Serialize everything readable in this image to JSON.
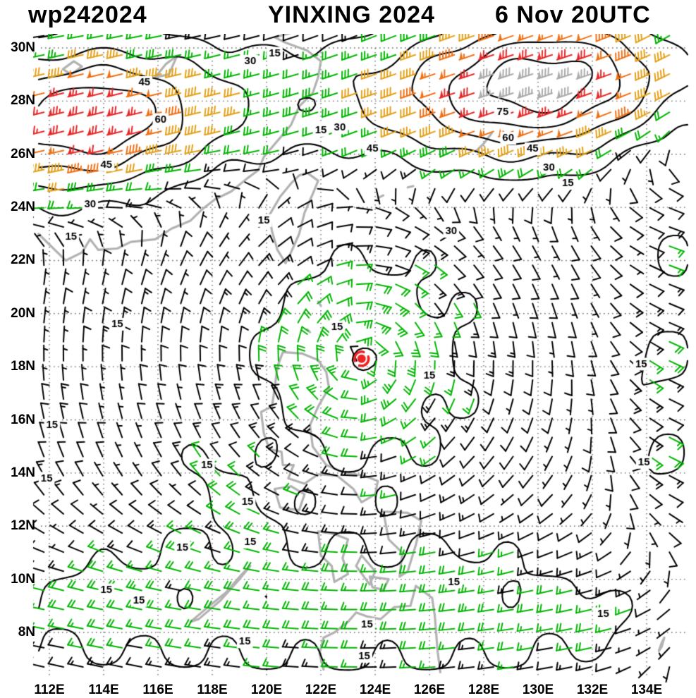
{
  "header": {
    "storm_id": "wp242024",
    "storm_name": "YINXING 2024",
    "valid_time": "6 Nov 20UTC"
  },
  "axes": {
    "x_ticks": [
      {
        "label": "112E",
        "lon": 112
      },
      {
        "label": "114E",
        "lon": 114
      },
      {
        "label": "116E",
        "lon": 116
      },
      {
        "label": "118E",
        "lon": 118
      },
      {
        "label": "120E",
        "lon": 120
      },
      {
        "label": "122E",
        "lon": 122
      },
      {
        "label": "124E",
        "lon": 124
      },
      {
        "label": "126E",
        "lon": 126
      },
      {
        "label": "128E",
        "lon": 128
      },
      {
        "label": "130E",
        "lon": 130
      },
      {
        "label": "132E",
        "lon": 132
      },
      {
        "label": "134E",
        "lon": 134
      }
    ],
    "y_ticks": [
      {
        "label": "30N",
        "lat": 30
      },
      {
        "label": "28N",
        "lat": 28
      },
      {
        "label": "26N",
        "lat": 26
      },
      {
        "label": "24N",
        "lat": 24
      },
      {
        "label": "22N",
        "lat": 22
      },
      {
        "label": "20N",
        "lat": 20
      },
      {
        "label": "18N",
        "lat": 18
      },
      {
        "label": "16N",
        "lat": 16
      },
      {
        "label": "14N",
        "lat": 14
      },
      {
        "label": "12N",
        "lat": 12
      },
      {
        "label": "10N",
        "lat": 10
      },
      {
        "label": "8N",
        "lat": 8
      }
    ],
    "lon_range": [
      111.6,
      135.5
    ],
    "lat_range": [
      6.3,
      30.6
    ],
    "grid": "dotted",
    "grid_color": "#666666"
  },
  "chart_data": {
    "type": "wind-barb-map",
    "units": "kt",
    "isotach_levels": [
      15,
      30,
      45,
      60,
      75
    ],
    "contour_color": "#000000",
    "speed_bins": [
      {
        "max": 15,
        "color": "#000000"
      },
      {
        "max": 30,
        "color": "#00b400"
      },
      {
        "max": 45,
        "color": "#e2a018"
      },
      {
        "max": 60,
        "color": "#ef7014"
      },
      {
        "max": 75,
        "color": "#e62828"
      },
      {
        "max": 999,
        "color": "#aaaaaa"
      }
    ],
    "storm": {
      "id": "wp242024",
      "name": "YINXING",
      "lon": 123.5,
      "lat": 18.3,
      "symbol_color": "#ee2222"
    },
    "barb_grid": {
      "lon_start": 111.8,
      "lat_start": 6.7,
      "step_deg": 0.72,
      "cols": 33,
      "rows": 34
    },
    "wind_field_model": {
      "vortex": {
        "lon": 123.5,
        "lat": 18.3,
        "vmax_kt": 24,
        "rmax_deg": 1.3
      },
      "jet": {
        "core_lat_west": 27.2,
        "core_lat_slope_per_deg": 0.08,
        "half_width_deg": 2.8,
        "base_kt": 30,
        "west_max": {
          "amp_kt": 44,
          "lon": 113.5,
          "sigma": 4.0
        },
        "east_max": {
          "amp_kt": 55,
          "lon": 130.0,
          "sigma": 4.5
        },
        "v_over_u": 0.28
      },
      "monsoon_westerlies": {
        "amp_kt": 13,
        "lat": 8.5,
        "sigma": 3.2
      },
      "edge_easterlies": {
        "amp_kt": -12,
        "lon": 135.3,
        "sigma": 2.5
      },
      "noise": {
        "amp_kt": 3.5,
        "kx": 2.1,
        "ky": 1.7,
        "phase": 1.0
      },
      "bumps": [
        {
          "lon": 117.8,
          "lat": 14.3,
          "amp_kt": 7,
          "sigma": 1.2
        },
        {
          "lon": 119.3,
          "lat": 12.9,
          "amp_kt": 6,
          "sigma": 1.2
        },
        {
          "lon": 116.9,
          "lat": 11.2,
          "amp_kt": 6,
          "sigma": 1.2
        },
        {
          "lon": 119.4,
          "lat": 11.4,
          "amp_kt": 5,
          "sigma": 1.2
        },
        {
          "lon": 114.1,
          "lat": 9.6,
          "amp_kt": 5,
          "sigma": 1.2
        },
        {
          "lon": 112.1,
          "lat": 15.8,
          "amp_kt": 7,
          "sigma": 1.3
        },
        {
          "lon": 111.9,
          "lat": 13.8,
          "amp_kt": 7,
          "sigma": 1.3
        },
        {
          "lon": 114.5,
          "lat": 19.6,
          "amp_kt": 6,
          "sigma": 1.2
        },
        {
          "lon": 133.9,
          "lat": 14.4,
          "amp_kt": 7,
          "sigma": 1.3
        },
        {
          "lon": 133.8,
          "lat": 18.1,
          "amp_kt": 6,
          "sigma": 1.3
        },
        {
          "lon": 132.4,
          "lat": 8.7,
          "amp_kt": 6,
          "sigma": 1.2
        },
        {
          "lon": 126.9,
          "lat": 9.9,
          "amp_kt": 5,
          "sigma": 1.2
        },
        {
          "lon": 115.3,
          "lat": 9.2,
          "amp_kt": 4,
          "sigma": 1.0
        },
        {
          "lon": 122.6,
          "lat": 19.5,
          "amp_kt": 3,
          "sigma": 1.0
        }
      ]
    },
    "contour_labels": [
      {
        "level": 45,
        "lon": 115.5,
        "lat": 28.7
      },
      {
        "level": 60,
        "lon": 116.1,
        "lat": 27.3
      },
      {
        "level": 45,
        "lon": 114.1,
        "lat": 25.6
      },
      {
        "level": 30,
        "lon": 113.5,
        "lat": 24.1
      },
      {
        "level": 15,
        "lon": 112.8,
        "lat": 22.9
      },
      {
        "level": 30,
        "lon": 119.4,
        "lat": 29.5
      },
      {
        "level": 15,
        "lon": 120.3,
        "lat": 29.8
      },
      {
        "level": 15,
        "lon": 122.0,
        "lat": 26.9
      },
      {
        "level": 30,
        "lon": 122.7,
        "lat": 27.0
      },
      {
        "level": 45,
        "lon": 123.9,
        "lat": 26.2
      },
      {
        "level": 75,
        "lon": 128.7,
        "lat": 27.6
      },
      {
        "level": 60,
        "lon": 128.9,
        "lat": 26.6
      },
      {
        "level": 45,
        "lon": 129.8,
        "lat": 26.2
      },
      {
        "level": 30,
        "lon": 130.4,
        "lat": 25.5
      },
      {
        "level": 15,
        "lon": 131.1,
        "lat": 24.9
      },
      {
        "level": 30,
        "lon": 126.8,
        "lat": 23.1
      },
      {
        "level": 15,
        "lon": 119.9,
        "lat": 23.5
      },
      {
        "level": 15,
        "lon": 114.5,
        "lat": 19.6
      },
      {
        "level": 15,
        "lon": 122.6,
        "lat": 19.5
      },
      {
        "level": 15,
        "lon": 126.0,
        "lat": 17.65
      },
      {
        "level": 15,
        "lon": 112.1,
        "lat": 15.8
      },
      {
        "level": 15,
        "lon": 111.9,
        "lat": 13.8
      },
      {
        "level": 15,
        "lon": 117.8,
        "lat": 14.3
      },
      {
        "level": 15,
        "lon": 119.3,
        "lat": 12.9
      },
      {
        "level": 15,
        "lon": 116.9,
        "lat": 11.2
      },
      {
        "level": 15,
        "lon": 119.4,
        "lat": 11.4
      },
      {
        "level": 15,
        "lon": 114.1,
        "lat": 9.6
      },
      {
        "level": 15,
        "lon": 115.3,
        "lat": 9.2
      },
      {
        "level": 15,
        "lon": 126.9,
        "lat": 9.9
      },
      {
        "level": 15,
        "lon": 123.7,
        "lat": 8.3
      },
      {
        "level": 15,
        "lon": 119.2,
        "lat": 7.65
      },
      {
        "level": 15,
        "lon": 123.6,
        "lat": 7.1
      },
      {
        "level": 15,
        "lon": 132.4,
        "lat": 8.7
      },
      {
        "level": 15,
        "lon": 133.9,
        "lat": 14.4
      },
      {
        "level": 15,
        "lon": 133.8,
        "lat": 18.1
      }
    ],
    "coastlines": {
      "color": "#b2b2b2",
      "width": 3.2,
      "paths": [
        [
          [
            111.6,
            23.0
          ],
          [
            112.6,
            22.0
          ],
          [
            113.2,
            22.3
          ],
          [
            113.5,
            22.8
          ],
          [
            113.8,
            22.4
          ],
          [
            114.5,
            22.45
          ],
          [
            115.0,
            22.7
          ],
          [
            115.9,
            22.8
          ],
          [
            116.5,
            23.2
          ],
          [
            117.2,
            23.5
          ],
          [
            117.6,
            23.9
          ],
          [
            118.1,
            24.3
          ],
          [
            118.7,
            24.6
          ],
          [
            119.3,
            25.1
          ],
          [
            119.7,
            25.4
          ],
          [
            119.9,
            25.9
          ],
          [
            120.4,
            26.5
          ],
          [
            120.9,
            27.1
          ],
          [
            121.2,
            27.8
          ],
          [
            121.7,
            28.3
          ],
          [
            121.9,
            28.9
          ],
          [
            122.0,
            29.5
          ],
          [
            121.5,
            29.9
          ],
          [
            120.7,
            30.2
          ],
          [
            120.3,
            30.4
          ],
          [
            121.0,
            30.6
          ]
        ],
        [
          [
            121.5,
            25.3
          ],
          [
            121.9,
            25.0
          ],
          [
            121.7,
            24.5
          ],
          [
            121.4,
            23.8
          ],
          [
            121.2,
            23.0
          ],
          [
            120.9,
            22.3
          ],
          [
            120.7,
            21.9
          ],
          [
            120.4,
            22.4
          ],
          [
            120.2,
            23.1
          ],
          [
            120.1,
            23.7
          ],
          [
            120.5,
            24.4
          ],
          [
            120.9,
            24.9
          ],
          [
            121.2,
            25.2
          ],
          [
            121.5,
            25.3
          ]
        ],
        [
          [
            120.6,
            18.55
          ],
          [
            121.3,
            18.5
          ],
          [
            121.9,
            18.25
          ],
          [
            122.2,
            17.8
          ],
          [
            122.3,
            17.2
          ],
          [
            121.9,
            16.5
          ],
          [
            121.6,
            15.8
          ],
          [
            121.7,
            15.0
          ],
          [
            122.2,
            14.3
          ],
          [
            122.9,
            14.0
          ],
          [
            123.6,
            13.9
          ],
          [
            124.1,
            13.7
          ],
          [
            124.0,
            13.2
          ],
          [
            123.5,
            12.9
          ],
          [
            123.2,
            13.4
          ],
          [
            122.6,
            13.9
          ],
          [
            121.9,
            13.95
          ],
          [
            121.4,
            13.6
          ],
          [
            120.8,
            13.8
          ],
          [
            121.0,
            14.3
          ],
          [
            120.6,
            14.3
          ],
          [
            120.55,
            14.8
          ],
          [
            120.1,
            14.9
          ],
          [
            119.9,
            15.5
          ],
          [
            119.8,
            16.3
          ],
          [
            120.2,
            16.5
          ],
          [
            120.3,
            17.2
          ],
          [
            120.4,
            18.0
          ],
          [
            120.6,
            18.55
          ]
        ],
        [
          [
            120.9,
            13.5
          ],
          [
            121.4,
            13.2
          ],
          [
            121.2,
            12.6
          ],
          [
            120.5,
            12.7
          ],
          [
            120.3,
            13.4
          ],
          [
            120.9,
            13.5
          ]
        ],
        [
          [
            124.3,
            12.55
          ],
          [
            125.2,
            12.5
          ],
          [
            125.7,
            12.2
          ],
          [
            125.5,
            11.3
          ],
          [
            125.2,
            10.3
          ],
          [
            124.9,
            10.1
          ],
          [
            125.0,
            11.0
          ],
          [
            124.5,
            11.5
          ],
          [
            124.3,
            12.55
          ]
        ],
        [
          [
            121.9,
            11.8
          ],
          [
            122.5,
            11.7
          ],
          [
            123.0,
            11.5
          ],
          [
            122.8,
            10.8
          ],
          [
            123.0,
            10.2
          ],
          [
            122.5,
            9.9
          ],
          [
            122.4,
            10.5
          ],
          [
            122.0,
            10.9
          ],
          [
            121.9,
            11.8
          ]
        ],
        [
          [
            123.5,
            10.9
          ],
          [
            124.0,
            10.3
          ],
          [
            123.8,
            9.8
          ],
          [
            123.3,
            10.5
          ],
          [
            123.5,
            10.9
          ]
        ],
        [
          [
            123.8,
            10.1
          ],
          [
            124.5,
            10.0
          ],
          [
            124.3,
            9.6
          ],
          [
            123.9,
            9.7
          ],
          [
            123.8,
            10.1
          ]
        ],
        [
          [
            126.4,
            6.5
          ],
          [
            126.3,
            7.3
          ],
          [
            126.2,
            8.6
          ],
          [
            126.1,
            9.3
          ],
          [
            125.5,
            9.75
          ],
          [
            125.3,
            9.0
          ],
          [
            124.7,
            8.95
          ],
          [
            124.2,
            8.5
          ],
          [
            123.7,
            8.6
          ],
          [
            123.3,
            8.75
          ],
          [
            123.0,
            8.4
          ],
          [
            122.5,
            8.0
          ],
          [
            122.1,
            7.8
          ],
          [
            121.95,
            7.2
          ],
          [
            122.1,
            6.6
          ]
        ],
        [
          [
            117.2,
            8.4
          ],
          [
            117.9,
            9.0
          ],
          [
            118.5,
            9.5
          ],
          [
            119.1,
            10.2
          ],
          [
            119.4,
            10.5
          ],
          [
            119.0,
            10.0
          ],
          [
            118.3,
            9.2
          ],
          [
            117.5,
            8.5
          ],
          [
            117.2,
            8.4
          ]
        ],
        [
          [
            134.45,
            7.3
          ],
          [
            134.55,
            7.6
          ],
          [
            134.65,
            7.8
          ],
          [
            134.55,
            7.45
          ],
          [
            134.45,
            7.3
          ]
        ],
        [
          [
            112.5,
            29.2
          ],
          [
            112.9,
            29.5
          ],
          [
            113.2,
            29.3
          ],
          [
            112.8,
            29.0
          ],
          [
            112.5,
            29.2
          ]
        ],
        [
          [
            115.9,
            28.9
          ],
          [
            116.3,
            29.4
          ],
          [
            116.7,
            29.7
          ],
          [
            116.4,
            29.0
          ],
          [
            115.9,
            28.9
          ]
        ],
        [
          [
            121.9,
            20.45
          ],
          [
            122.0,
            20.3
          ]
        ],
        [
          [
            121.5,
            19.4
          ],
          [
            121.6,
            19.3
          ]
        ],
        [
          [
            127.7,
            26.1
          ],
          [
            128.0,
            26.4
          ],
          [
            128.3,
            26.8
          ]
        ],
        [
          [
            125.2,
            24.75
          ],
          [
            125.4,
            24.8
          ]
        ],
        [
          [
            124.1,
            24.35
          ],
          [
            124.3,
            24.45
          ]
        ]
      ]
    }
  }
}
